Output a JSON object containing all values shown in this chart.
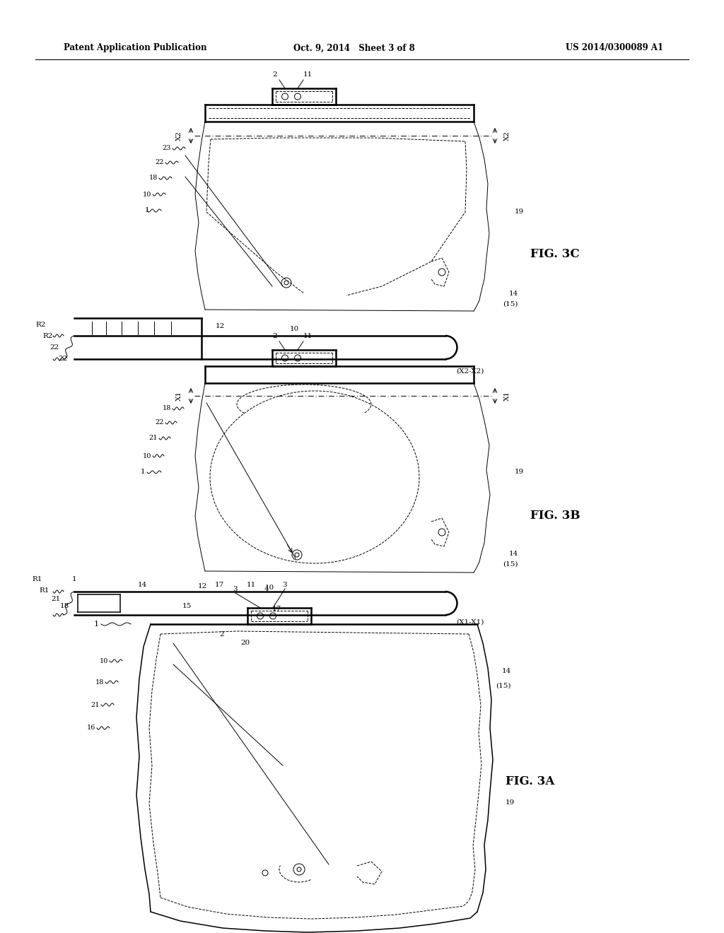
{
  "header_left": "Patent Application Publication",
  "header_center": "Oct. 9, 2014   Sheet 3 of 8",
  "header_right": "US 2014/0300089 A1",
  "background_color": "#ffffff",
  "line_color": "#000000",
  "page_width": 10.24,
  "page_height": 13.2
}
